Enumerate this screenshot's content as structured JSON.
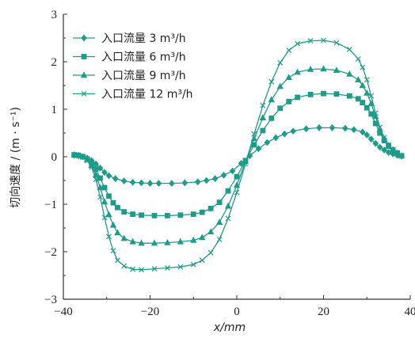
{
  "chart_data": {
    "type": "line",
    "xlabel": "x/mm",
    "ylabel": "切向速度 / (m · s⁻¹)",
    "xlim": [
      -40,
      40
    ],
    "ylim": [
      -3,
      3
    ],
    "xticks": [
      "-40",
      "-20",
      "0",
      "20",
      "40"
    ],
    "yticks": [
      "-3",
      "-2",
      "-1",
      "0",
      "1",
      "2",
      "3"
    ],
    "legend_position": "top-left",
    "grid": false,
    "series": [
      {
        "name": "入口流量 3 m³/h",
        "color": "#1e9c8a",
        "marker": "diamond",
        "points": [
          [
            -37.5,
            0.03
          ],
          [
            -36.5,
            0.02
          ],
          [
            -35.5,
            0.0
          ],
          [
            -34.5,
            -0.03
          ],
          [
            -33.5,
            -0.08
          ],
          [
            -32.5,
            -0.15
          ],
          [
            -31.5,
            -0.24
          ],
          [
            -30.5,
            -0.33
          ],
          [
            -29.5,
            -0.4
          ],
          [
            -28,
            -0.46
          ],
          [
            -26,
            -0.51
          ],
          [
            -24,
            -0.54
          ],
          [
            -22,
            -0.55
          ],
          [
            -20,
            -0.56
          ],
          [
            -18,
            -0.56
          ],
          [
            -15,
            -0.56
          ],
          [
            -12,
            -0.55
          ],
          [
            -9,
            -0.53
          ],
          [
            -7,
            -0.5
          ],
          [
            -5,
            -0.46
          ],
          [
            -3,
            -0.39
          ],
          [
            -1,
            -0.3
          ],
          [
            1,
            -0.14
          ],
          [
            3,
            0.02
          ],
          [
            5,
            0.17
          ],
          [
            7,
            0.3
          ],
          [
            9,
            0.4
          ],
          [
            11,
            0.48
          ],
          [
            13,
            0.54
          ],
          [
            16,
            0.59
          ],
          [
            19,
            0.61
          ],
          [
            22,
            0.61
          ],
          [
            25,
            0.6
          ],
          [
            27,
            0.57
          ],
          [
            29,
            0.52
          ],
          [
            30,
            0.46
          ],
          [
            31,
            0.37
          ],
          [
            32,
            0.28
          ],
          [
            33,
            0.2
          ],
          [
            34,
            0.14
          ],
          [
            35,
            0.09
          ],
          [
            36,
            0.06
          ],
          [
            37,
            0.03
          ],
          [
            38,
            0.01
          ]
        ]
      },
      {
        "name": "入口流量 6 m³/h",
        "color": "#1e9c8a",
        "marker": "square",
        "points": [
          [
            -37.5,
            0.04
          ],
          [
            -36.5,
            0.03
          ],
          [
            -35.5,
            0.0
          ],
          [
            -34.5,
            -0.05
          ],
          [
            -33.5,
            -0.13
          ],
          [
            -32.5,
            -0.26
          ],
          [
            -31.5,
            -0.45
          ],
          [
            -30.5,
            -0.65
          ],
          [
            -29.5,
            -0.83
          ],
          [
            -28.5,
            -0.97
          ],
          [
            -27.5,
            -1.07
          ],
          [
            -26,
            -1.16
          ],
          [
            -24,
            -1.21
          ],
          [
            -22,
            -1.23
          ],
          [
            -19,
            -1.24
          ],
          [
            -16,
            -1.24
          ],
          [
            -13,
            -1.23
          ],
          [
            -10,
            -1.21
          ],
          [
            -8,
            -1.17
          ],
          [
            -6,
            -1.09
          ],
          [
            -4,
            -0.96
          ],
          [
            -2,
            -0.72
          ],
          [
            0,
            -0.42
          ],
          [
            2,
            -0.08
          ],
          [
            4,
            0.25
          ],
          [
            6,
            0.55
          ],
          [
            8,
            0.81
          ],
          [
            10,
            1.02
          ],
          [
            12,
            1.16
          ],
          [
            14,
            1.25
          ],
          [
            17,
            1.31
          ],
          [
            20,
            1.33
          ],
          [
            23,
            1.32
          ],
          [
            26,
            1.28
          ],
          [
            28,
            1.22
          ],
          [
            29,
            1.14
          ],
          [
            30,
            1.03
          ],
          [
            31,
            0.9
          ],
          [
            32,
            0.7
          ],
          [
            33,
            0.5
          ],
          [
            34,
            0.34
          ],
          [
            35,
            0.22
          ],
          [
            36,
            0.14
          ],
          [
            37,
            0.08
          ],
          [
            38,
            0.02
          ]
        ]
      },
      {
        "name": "入口流量 9 m³/h",
        "color": "#1e9c8a",
        "marker": "triangle",
        "points": [
          [
            -37.5,
            0.04
          ],
          [
            -36.5,
            0.03
          ],
          [
            -35.5,
            0.0
          ],
          [
            -34.5,
            -0.06
          ],
          [
            -33.5,
            -0.18
          ],
          [
            -32.5,
            -0.38
          ],
          [
            -31.5,
            -0.65
          ],
          [
            -30.5,
            -0.95
          ],
          [
            -29.5,
            -1.22
          ],
          [
            -28.5,
            -1.44
          ],
          [
            -27.5,
            -1.6
          ],
          [
            -26,
            -1.72
          ],
          [
            -24,
            -1.79
          ],
          [
            -22,
            -1.82
          ],
          [
            -19,
            -1.82
          ],
          [
            -16,
            -1.81
          ],
          [
            -13,
            -1.79
          ],
          [
            -10,
            -1.76
          ],
          [
            -8,
            -1.7
          ],
          [
            -6,
            -1.58
          ],
          [
            -4,
            -1.38
          ],
          [
            -2,
            -1.04
          ],
          [
            0,
            -0.6
          ],
          [
            2,
            -0.1
          ],
          [
            4,
            0.38
          ],
          [
            6,
            0.82
          ],
          [
            8,
            1.2
          ],
          [
            10,
            1.48
          ],
          [
            12,
            1.67
          ],
          [
            14,
            1.78
          ],
          [
            17,
            1.84
          ],
          [
            20,
            1.85
          ],
          [
            23,
            1.82
          ],
          [
            26,
            1.74
          ],
          [
            28,
            1.62
          ],
          [
            29,
            1.5
          ],
          [
            30,
            1.34
          ],
          [
            31,
            1.12
          ],
          [
            32,
            0.85
          ],
          [
            33,
            0.58
          ],
          [
            34,
            0.38
          ],
          [
            35,
            0.24
          ],
          [
            36,
            0.15
          ],
          [
            37,
            0.08
          ],
          [
            38,
            0.02
          ]
        ]
      },
      {
        "name": "入口流量 12 m³/h",
        "color": "#1e9c8a",
        "marker": "cross",
        "points": [
          [
            -37.5,
            0.04
          ],
          [
            -36.5,
            0.02
          ],
          [
            -35.5,
            0.0
          ],
          [
            -34.5,
            -0.08
          ],
          [
            -33.5,
            -0.22
          ],
          [
            -32.5,
            -0.48
          ],
          [
            -31.5,
            -0.85
          ],
          [
            -30.5,
            -1.28
          ],
          [
            -29.5,
            -1.68
          ],
          [
            -28.5,
            -1.98
          ],
          [
            -27.5,
            -2.18
          ],
          [
            -26,
            -2.3
          ],
          [
            -24,
            -2.37
          ],
          [
            -22,
            -2.38
          ],
          [
            -19,
            -2.36
          ],
          [
            -16,
            -2.34
          ],
          [
            -13,
            -2.32
          ],
          [
            -10,
            -2.27
          ],
          [
            -8,
            -2.18
          ],
          [
            -6,
            -2.02
          ],
          [
            -4,
            -1.74
          ],
          [
            -2,
            -1.3
          ],
          [
            0,
            -0.75
          ],
          [
            2,
            -0.15
          ],
          [
            4,
            0.48
          ],
          [
            6,
            1.08
          ],
          [
            8,
            1.58
          ],
          [
            10,
            1.98
          ],
          [
            12,
            2.24
          ],
          [
            14,
            2.38
          ],
          [
            17,
            2.44
          ],
          [
            20,
            2.45
          ],
          [
            23,
            2.4
          ],
          [
            26,
            2.26
          ],
          [
            28,
            2.06
          ],
          [
            29,
            1.88
          ],
          [
            30,
            1.62
          ],
          [
            31,
            1.28
          ],
          [
            32,
            0.92
          ],
          [
            33,
            0.62
          ],
          [
            34,
            0.4
          ],
          [
            35,
            0.25
          ],
          [
            36,
            0.15
          ],
          [
            37,
            0.08
          ],
          [
            38,
            0.02
          ]
        ]
      }
    ]
  }
}
